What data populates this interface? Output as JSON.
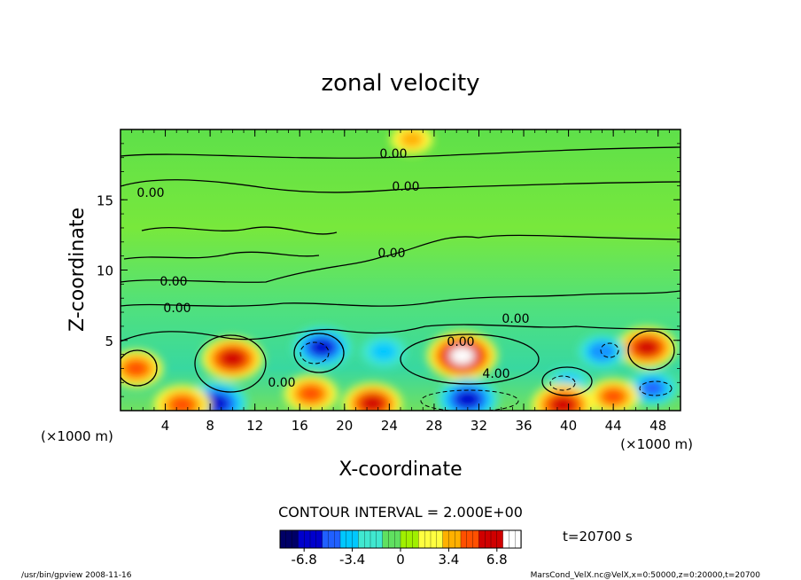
{
  "chart_data": {
    "type": "heatmap",
    "title": "zonal velocity",
    "xlabel": "X-coordinate",
    "ylabel": "Z-coordinate",
    "x_unit": "(×1000 m)",
    "y_unit": "(×1000 m)",
    "xlim": [
      0,
      50
    ],
    "ylim": [
      0,
      20
    ],
    "x_ticks": [
      "4",
      "8",
      "12",
      "16",
      "20",
      "24",
      "28",
      "32",
      "36",
      "40",
      "44",
      "48"
    ],
    "y_ticks": [
      "5",
      "10",
      "15"
    ],
    "contour_interval_text": "CONTOUR INTERVAL = 2.000E+00",
    "contour_labels": [
      "0.00",
      "0.00",
      "0.00",
      "0.00",
      "0.00",
      "0.00",
      "0.00",
      "0.00",
      "0.00",
      "4.00"
    ],
    "time_text": "t=20700 s",
    "colorbar": {
      "range": [
        -8.5,
        8.5
      ],
      "ticks": [
        "-6.8",
        "-3.4",
        "0",
        "3.4",
        "6.8"
      ],
      "colors": [
        "#000066",
        "#0000cc",
        "#2060ff",
        "#00c8ff",
        "#40e8d0",
        "#60e060",
        "#a0f000",
        "#ffff40",
        "#ffb000",
        "#ff5000",
        "#d00000",
        "#ffffff"
      ]
    },
    "features": [
      {
        "x": 10.0,
        "z": 3.7,
        "u": 6.5
      },
      {
        "x": 30.5,
        "z": 3.9,
        "u": 8.0
      },
      {
        "x": 47.0,
        "z": 4.5,
        "u": 6.0
      },
      {
        "x": 18.0,
        "z": 4.5,
        "u": -6.0
      },
      {
        "x": 23.5,
        "z": 4.2,
        "u": -3.5
      },
      {
        "x": 31.0,
        "z": 0.8,
        "u": -6.5
      },
      {
        "x": 8.5,
        "z": 0.5,
        "u": -7.0
      },
      {
        "x": 43.0,
        "z": 4.2,
        "u": -4.0
      },
      {
        "x": 47.5,
        "z": 1.6,
        "u": -4.5
      },
      {
        "x": 40.0,
        "z": 2.0,
        "u": -3.0
      },
      {
        "x": 1.4,
        "z": 3.0,
        "u": 5.0
      },
      {
        "x": 17.0,
        "z": 1.2,
        "u": 5.0
      },
      {
        "x": 22.5,
        "z": 0.5,
        "u": 6.0
      },
      {
        "x": 39.5,
        "z": 0.4,
        "u": 6.5
      },
      {
        "x": 5.5,
        "z": 0.4,
        "u": 5.5
      },
      {
        "x": 44.0,
        "z": 1.0,
        "u": 4.5
      },
      {
        "x": 26.0,
        "z": 19.3,
        "u": 3.0
      }
    ]
  },
  "footer": {
    "left": "/usr/bin/gpview  2008-11-16",
    "right": "MarsCond_VelX.nc@VelX,x=0:50000,z=0:20000,t=20700"
  }
}
